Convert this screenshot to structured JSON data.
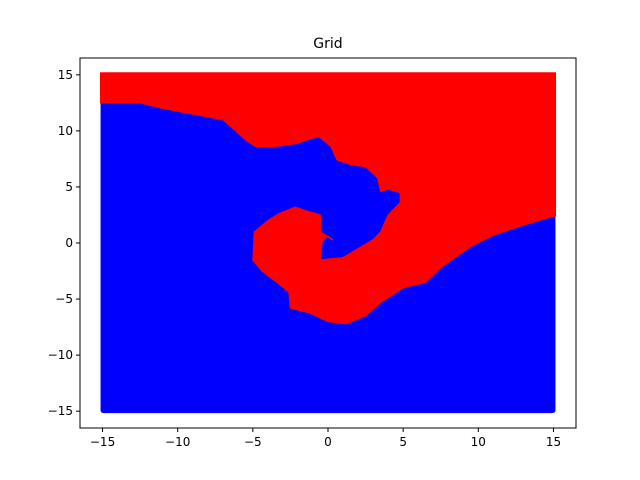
{
  "chart_data": {
    "type": "scatter",
    "title": "Grid",
    "xlabel": "",
    "ylabel": "",
    "xlim": [
      -16.5,
      16.5
    ],
    "ylim": [
      -16.5,
      16.5
    ],
    "xticks": [
      -15,
      -10,
      -5,
      0,
      5,
      10,
      15
    ],
    "yticks": [
      -15,
      -10,
      -5,
      0,
      5,
      10,
      15
    ],
    "xtick_labels": [
      "−15",
      "−10",
      "−5",
      "0",
      "5",
      "10",
      "15"
    ],
    "ytick_labels": [
      "−15",
      "−10",
      "−5",
      "0",
      "5",
      "10",
      "15"
    ],
    "grid": false,
    "grid_range": [
      -15,
      15
    ],
    "series": [
      {
        "color": "#ff0000",
        "region": "upper region above the spiral boundary, including the inner spiral tail"
      },
      {
        "color": "#0000ff",
        "region": "lower region below the spiral boundary"
      }
    ],
    "boundary": [
      [
        -15.0,
        12.5
      ],
      [
        -12.5,
        12.5
      ],
      [
        -11.0,
        12.0
      ],
      [
        -9.0,
        11.5
      ],
      [
        -7.0,
        11.0
      ],
      [
        -6.3,
        10.2
      ],
      [
        -5.5,
        9.2
      ],
      [
        -4.8,
        8.6
      ],
      [
        -3.5,
        8.6
      ],
      [
        -2.0,
        8.9
      ],
      [
        -1.2,
        9.3
      ],
      [
        -0.6,
        9.5
      ],
      [
        0.2,
        8.6
      ],
      [
        0.6,
        7.4
      ],
      [
        1.5,
        7.0
      ],
      [
        2.5,
        6.8
      ],
      [
        3.3,
        5.8
      ],
      [
        3.5,
        4.6
      ],
      [
        4.0,
        4.8
      ],
      [
        4.8,
        4.5
      ],
      [
        4.8,
        3.6
      ],
      [
        4.0,
        2.5
      ],
      [
        3.5,
        1.0
      ],
      [
        3.0,
        0.3
      ],
      [
        2.0,
        -0.5
      ],
      [
        1.0,
        -1.3
      ],
      [
        -0.5,
        -1.5
      ],
      [
        -0.4,
        0.2
      ],
      [
        0.0,
        0.6
      ],
      [
        0.3,
        0.3
      ],
      [
        -0.5,
        1.0
      ],
      [
        -0.5,
        2.5
      ],
      [
        -1.3,
        2.8
      ],
      [
        -2.2,
        3.2
      ],
      [
        -3.3,
        2.6
      ],
      [
        -4.0,
        2.0
      ],
      [
        -4.9,
        1.0
      ],
      [
        -5.0,
        -1.5
      ],
      [
        -4.4,
        -2.5
      ],
      [
        -3.4,
        -3.5
      ],
      [
        -2.6,
        -4.4
      ],
      [
        -2.5,
        -5.8
      ],
      [
        -1.3,
        -6.2
      ],
      [
        0.0,
        -7.0
      ],
      [
        1.2,
        -7.2
      ],
      [
        2.5,
        -6.5
      ],
      [
        3.5,
        -5.3
      ],
      [
        5.0,
        -4.0
      ],
      [
        6.5,
        -3.5
      ],
      [
        7.5,
        -2.2
      ],
      [
        9.5,
        -0.3
      ],
      [
        11.0,
        0.7
      ],
      [
        13.0,
        1.6
      ],
      [
        15.0,
        2.4
      ]
    ]
  }
}
